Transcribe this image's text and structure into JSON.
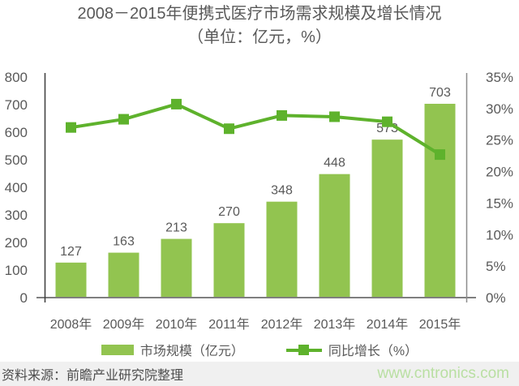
{
  "chart_data": {
    "type": "bar",
    "combo": "bar+line dual axis",
    "title": "2008－2015年便携式医疗市场需求规模及增长情况",
    "subtitle": "（单位：亿元，%）",
    "categories": [
      "2008年",
      "2009年",
      "2010年",
      "2011年",
      "2012年",
      "2013年",
      "2014年",
      "2015年"
    ],
    "series": [
      {
        "name": "市场规模（亿元）",
        "type": "bar",
        "axis": "left",
        "color": "#92c450",
        "values": [
          127,
          163,
          213,
          270,
          348,
          448,
          573,
          703
        ],
        "data_labels": true
      },
      {
        "name": "同比增长（%）",
        "type": "line",
        "axis": "right",
        "color": "#5eb22c",
        "values": [
          27.0,
          28.3,
          30.7,
          26.8,
          28.9,
          28.7,
          27.9,
          22.7
        ],
        "data_labels": false
      }
    ],
    "left_axis": {
      "min": 0,
      "max": 800,
      "step": 100,
      "suffix": ""
    },
    "right_axis": {
      "min": 0,
      "max": 35,
      "step": 5,
      "suffix": "%"
    },
    "grid": false,
    "legend_position": "bottom"
  },
  "legend": {
    "items": [
      {
        "label": "市场规模（亿元）",
        "swatch": "bar"
      },
      {
        "label": "同比增长（%）",
        "swatch": "line-marker"
      }
    ]
  },
  "footer": {
    "source": "资料来源：前瞻产业研究院整理",
    "watermark": "www.cntronics.com"
  },
  "colors": {
    "bar": "#92c450",
    "line": "#5eb22c",
    "text": "#595959",
    "value_label": "#595959",
    "axis_left": "#3c3c3c",
    "axis_right": "#8c8c8c",
    "baseline": "#7f7f7f",
    "source_text": "#4d4d4d",
    "strip_bg": "#f0f0f0",
    "watermark": "#b9dfa2"
  }
}
